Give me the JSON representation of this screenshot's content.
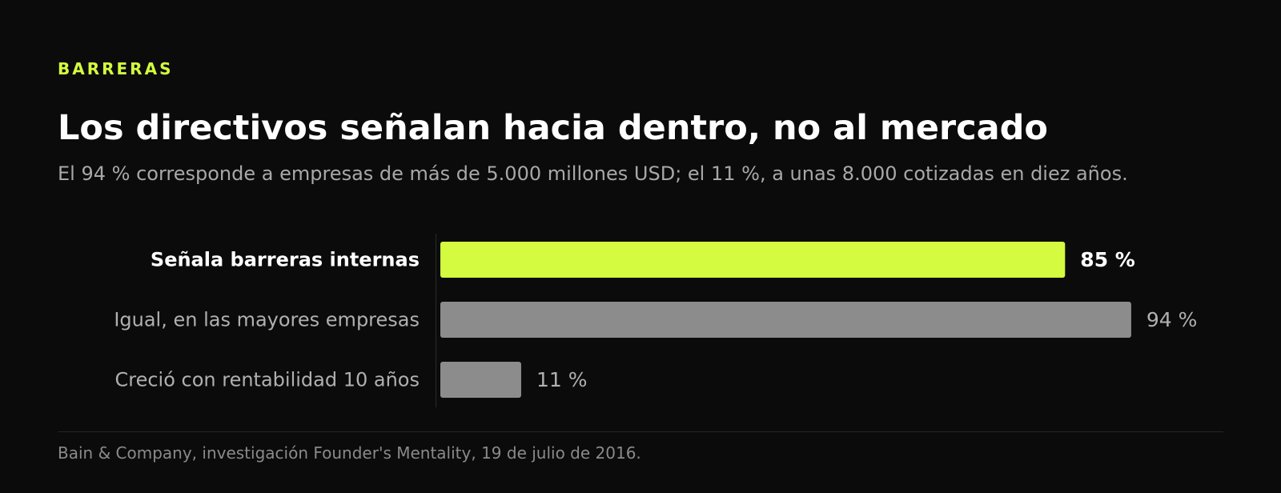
{
  "header": {
    "eyebrow": "BARRERAS",
    "title": "Los directivos señalan hacia dentro, no al mercado",
    "subtitle": "El 94 % corresponde a empresas de más de 5.000 millones USD; el 11 %, a unas 8.000 cotizadas en diez años."
  },
  "footer": {
    "source": "Bain & Company, investigación Founder's Mentality, 19 de julio de 2016."
  },
  "colors": {
    "accent": "#d4fb3f",
    "muted_bar": "#8c8c8c",
    "background": "#0b0b0b"
  },
  "chart_data": {
    "type": "bar",
    "orientation": "horizontal",
    "categories": [
      "Señala barreras internas",
      "Igual, en las mayores empresas",
      "Creció con rentabilidad 10 años"
    ],
    "values": [
      85,
      94,
      11
    ],
    "value_labels": [
      "85 %",
      "94 %",
      "11 %"
    ],
    "highlighted": [
      true,
      false,
      false
    ],
    "xlim": [
      0,
      100
    ],
    "unit": "%",
    "grid": false,
    "legend": "none"
  }
}
